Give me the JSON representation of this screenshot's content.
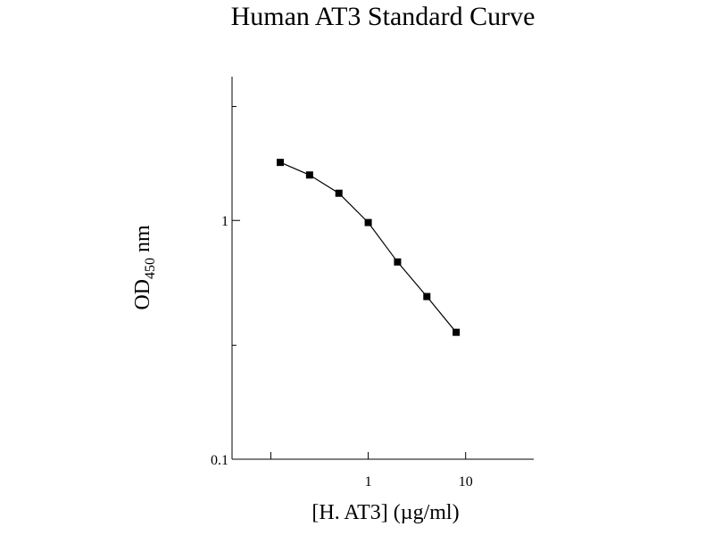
{
  "chart_data": {
    "type": "line",
    "title": "Human AT3 Standard Curve",
    "xlabel": "[H. AT3] (µg/ml)",
    "ylabel": {
      "main": "OD",
      "sub": "450",
      "unit": "nm"
    },
    "x_scale": "log",
    "y_scale": "log",
    "xlim": [
      0.04,
      50
    ],
    "ylim": [
      0.1,
      4
    ],
    "x_ticks": [
      1,
      10
    ],
    "x_tick_labels": [
      "1",
      "10"
    ],
    "y_ticks": [
      0.1,
      1
    ],
    "y_tick_labels": [
      "0.1",
      "1"
    ],
    "grid": false,
    "series": [
      {
        "x": [
          0.125,
          0.25,
          0.5,
          1,
          2,
          4,
          8
        ],
        "y": [
          1.75,
          1.55,
          1.3,
          0.98,
          0.67,
          0.48,
          0.34
        ],
        "marker": "square",
        "color": "#000000"
      }
    ]
  }
}
